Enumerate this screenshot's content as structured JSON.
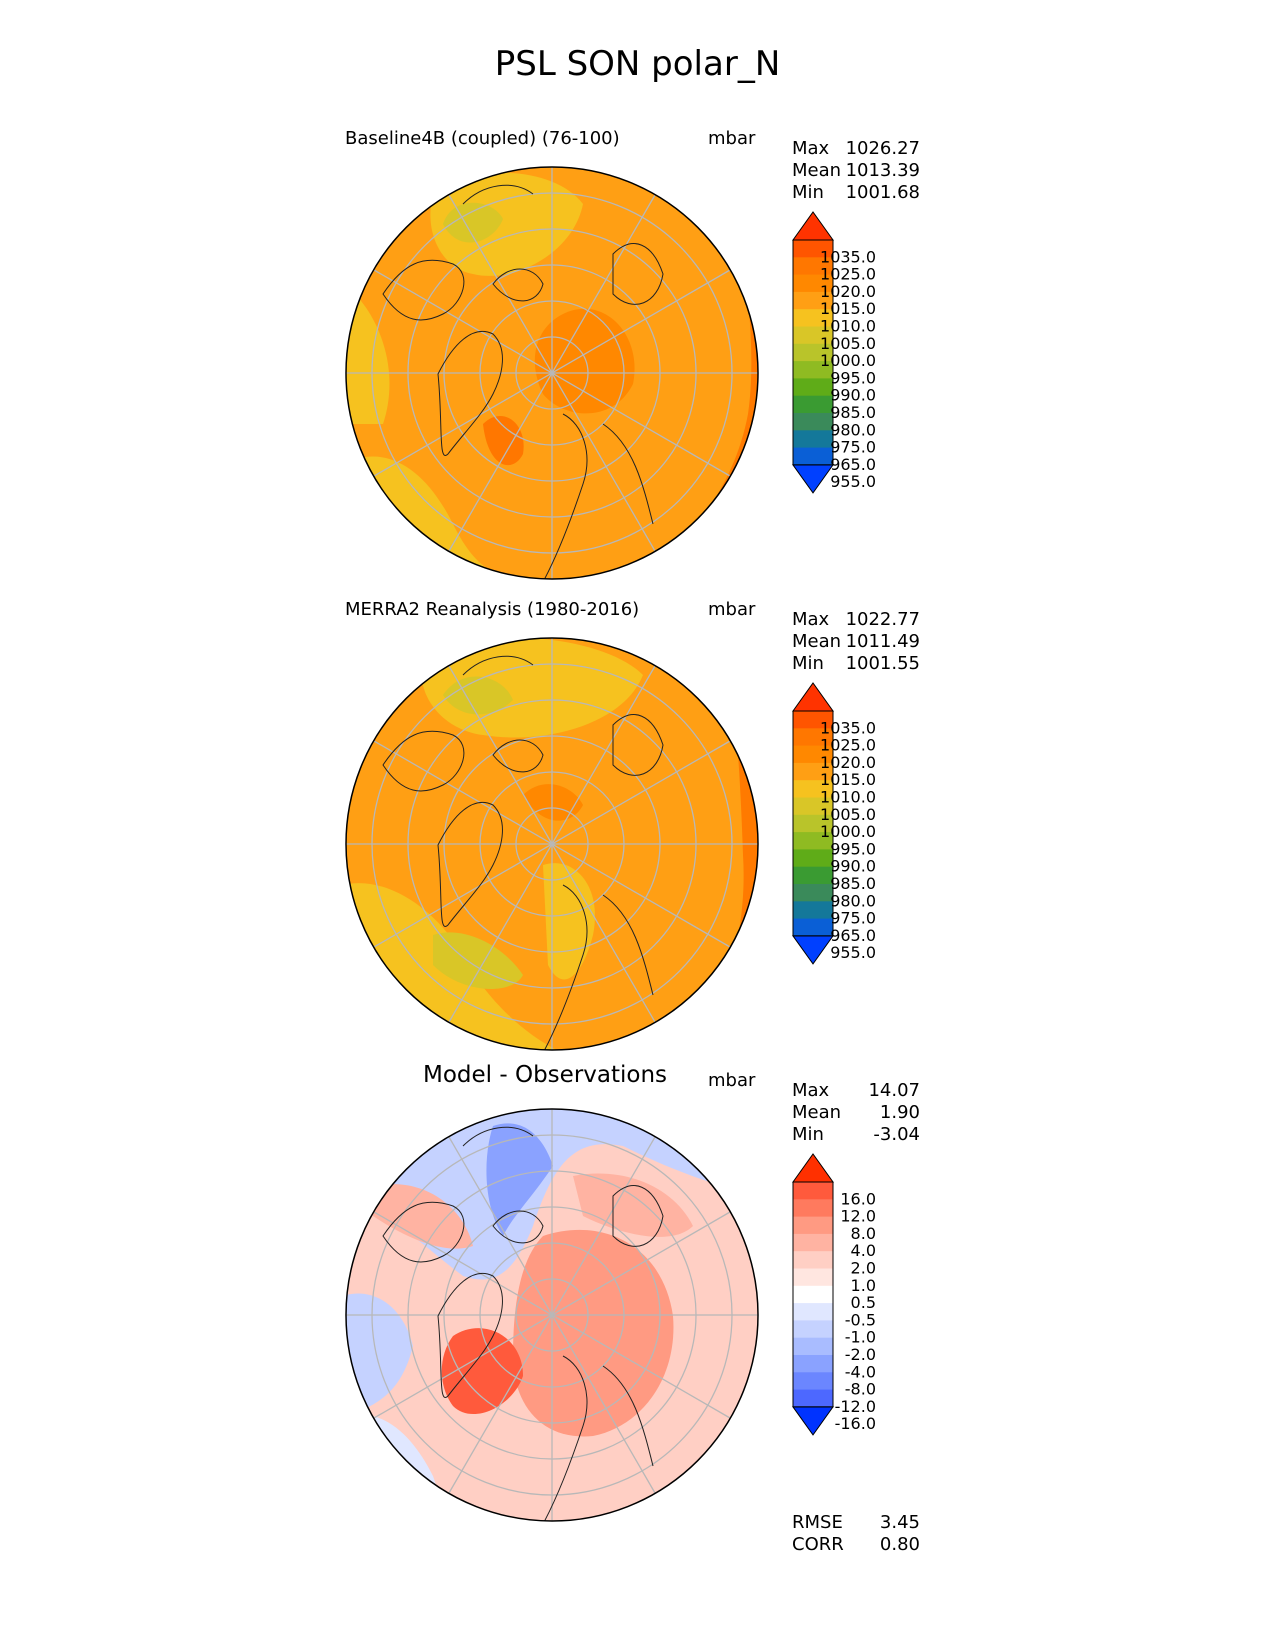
{
  "figure": {
    "title": "PSL SON polar_N"
  },
  "panels": [
    {
      "title": "Baseline4B (coupled) (76-100)",
      "units": "mbar",
      "stats": [
        {
          "label": "Max",
          "value": "1026.27"
        },
        {
          "label": "Mean",
          "value": "1013.39"
        },
        {
          "label": "Min",
          "value": "1001.68"
        }
      ]
    },
    {
      "title": "MERRA2 Reanalysis (1980-2016)",
      "units": "mbar",
      "stats": [
        {
          "label": "Max",
          "value": "1022.77"
        },
        {
          "label": "Mean",
          "value": "1011.49"
        },
        {
          "label": "Min",
          "value": "1001.55"
        }
      ]
    },
    {
      "title": "Model - Observations",
      "units": "mbar",
      "stats": [
        {
          "label": "Max",
          "value": "14.07"
        },
        {
          "label": "Mean",
          "value": "1.90"
        },
        {
          "label": "Min",
          "value": "-3.04"
        }
      ],
      "extra": [
        {
          "label": "RMSE",
          "value": "3.45"
        },
        {
          "label": "CORR",
          "value": "0.80"
        }
      ]
    }
  ],
  "chart_data": [
    {
      "type": "heatmap",
      "title": "Baseline4B (coupled) (76-100)",
      "projection": "north polar stereographic",
      "units": "mbar",
      "colorbar": {
        "ticks": [
          "1035.0",
          "1025.0",
          "1020.0",
          "1015.0",
          "1010.0",
          "1005.0",
          "1000.0",
          "995.0",
          "990.0",
          "985.0",
          "980.0",
          "975.0",
          "965.0",
          "955.0"
        ],
        "colors": [
          "#ff3300",
          "#ff5500",
          "#ff7700",
          "#ff8800",
          "#ff9f14",
          "#f6c21f",
          "#d9c627",
          "#b9c42a",
          "#8fbb22",
          "#5fac18",
          "#3a9b32",
          "#3a8a5a",
          "#14789a",
          "#0a5fd6",
          "#0040ff"
        ]
      }
    },
    {
      "type": "heatmap",
      "title": "MERRA2 Reanalysis (1980-2016)",
      "projection": "north polar stereographic",
      "units": "mbar",
      "colorbar": {
        "ticks": [
          "1035.0",
          "1025.0",
          "1020.0",
          "1015.0",
          "1010.0",
          "1005.0",
          "1000.0",
          "995.0",
          "990.0",
          "985.0",
          "980.0",
          "975.0",
          "965.0",
          "955.0"
        ],
        "colors": [
          "#ff3300",
          "#ff5500",
          "#ff7700",
          "#ff8800",
          "#ff9f14",
          "#f6c21f",
          "#d9c627",
          "#b9c42a",
          "#8fbb22",
          "#5fac18",
          "#3a9b32",
          "#3a8a5a",
          "#14789a",
          "#0a5fd6",
          "#0040ff"
        ]
      }
    },
    {
      "type": "heatmap",
      "title": "Model - Observations",
      "projection": "north polar stereographic",
      "units": "mbar",
      "colorbar": {
        "ticks": [
          "16.0",
          "12.0",
          "8.0",
          "4.0",
          "2.0",
          "1.0",
          "0.5",
          "-0.5",
          "-1.0",
          "-2.0",
          "-4.0",
          "-8.0",
          "-12.0",
          "-16.0"
        ],
        "colors": [
          "#ff3000",
          "#ff5a3c",
          "#ff7a5e",
          "#ff9a82",
          "#ffb3a2",
          "#ffcfc4",
          "#ffe6e0",
          "#ffffff",
          "#e0e7ff",
          "#c5d2ff",
          "#a9bcff",
          "#8aa2ff",
          "#6b86ff",
          "#4d68ff",
          "#0033ff"
        ]
      }
    }
  ]
}
